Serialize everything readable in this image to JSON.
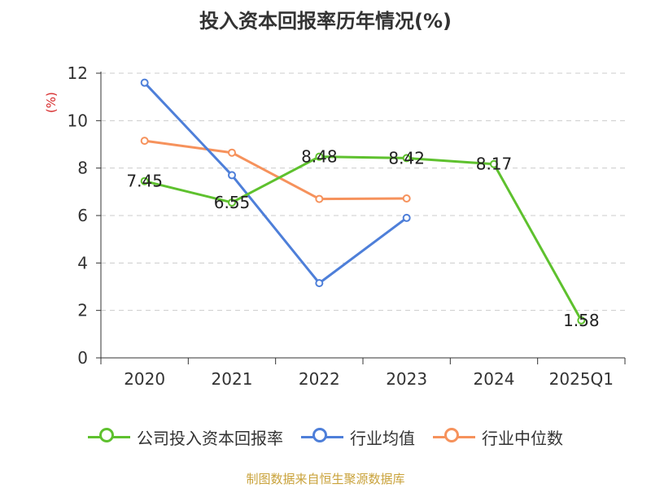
{
  "chart_data": {
    "type": "line",
    "title": "投入资本回报率历年情况(%)",
    "ylabel": "(%)",
    "xlabel": "",
    "categories": [
      "2020",
      "2021",
      "2022",
      "2023",
      "2024",
      "2025Q1"
    ],
    "ylim": [
      0,
      12
    ],
    "yticks": [
      0,
      2,
      4,
      6,
      8,
      10,
      12
    ],
    "grid": true,
    "legend_position": "bottom",
    "series": [
      {
        "name": "公司投入资本回报率",
        "color": "#5ec12e",
        "values": [
          7.45,
          6.55,
          8.48,
          8.42,
          8.17,
          1.58
        ],
        "labels": [
          "7.45",
          "6.55",
          "8.48",
          "8.42",
          "8.17",
          "1.58"
        ]
      },
      {
        "name": "行业均值",
        "color": "#4e7fd9",
        "values": [
          11.6,
          7.7,
          3.15,
          5.9,
          null,
          null
        ]
      },
      {
        "name": "行业中位数",
        "color": "#f6925c",
        "values": [
          9.15,
          8.65,
          6.7,
          6.72,
          null,
          null
        ]
      }
    ]
  },
  "footer": {
    "source": "制图数据来自恒生聚源数据库"
  }
}
